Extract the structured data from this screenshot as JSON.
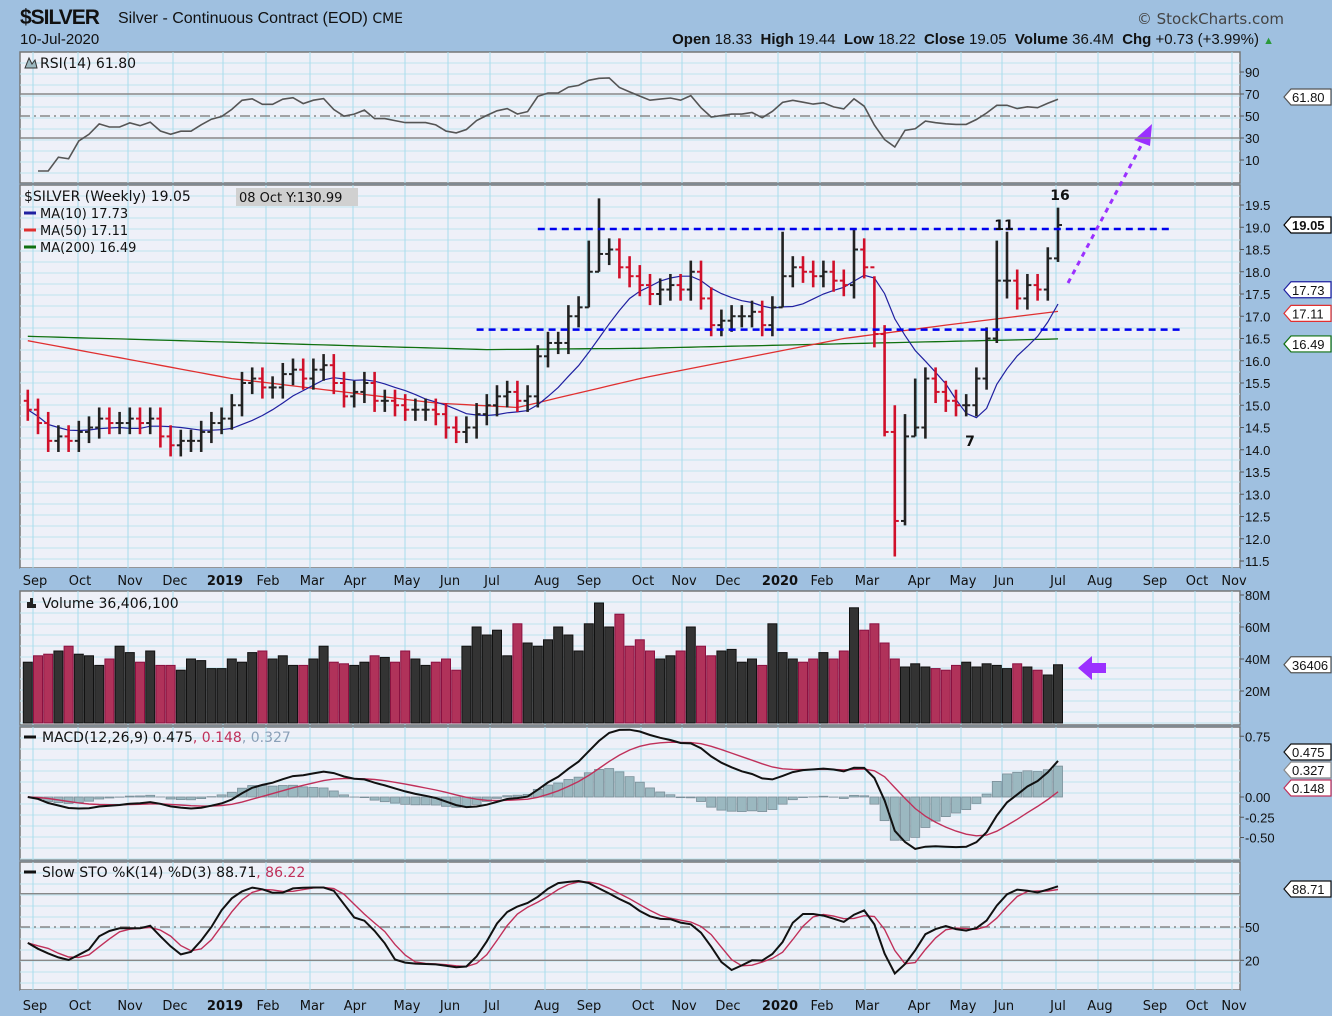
{
  "header": {
    "symbol": "$SILVER",
    "description": "Silver - Continuous Contract (EOD)",
    "exchange": "CME",
    "date": "10-Jul-2020",
    "brand": "© StockCharts.com",
    "open_label": "Open",
    "open": "18.33",
    "high_label": "High",
    "high": "19.44",
    "low_label": "Low",
    "low": "18.22",
    "close_label": "Close",
    "close": "19.05",
    "volume_label": "Volume",
    "volume": "36.4M",
    "chg_label": "Chg",
    "chg": "+0.73 (+3.99%)",
    "chg_icon": "triangle-up-icon"
  },
  "colors": {
    "up": "#222222",
    "down": "#d0102a",
    "vol_up": "#333333",
    "vol_down": "#b0325a",
    "ma10": "#2020a0",
    "ma50": "#e03030",
    "ma200": "#107010",
    "signal": "#c0305a",
    "hist": "#9bb8c0",
    "trendline": "#0000ee",
    "projection": "#9b30ff",
    "annotation": "#ff2020",
    "background": "#9fc0e0",
    "panel": "#eef0f8"
  },
  "tooltip": "08 Oct Y:130.99",
  "chart_data": [
    {
      "type": "line",
      "title": "RSI(14) 61.80",
      "levels": [
        70,
        50,
        30
      ],
      "yticks": [
        "90",
        "70",
        "50",
        "30",
        "10"
      ],
      "ylim": [
        0,
        100
      ],
      "last_value": "61.80"
    },
    {
      "type": "ohlc",
      "title": "$SILVER (Weekly) 19.05",
      "legend": [
        {
          "label": "MA(10) 17.73",
          "color": "#2020a0"
        },
        {
          "label": "MA(50) 17.11",
          "color": "#e03030"
        },
        {
          "label": "MA(200) 16.49",
          "color": "#107010"
        }
      ],
      "yticks": [
        "19.5",
        "19.0",
        "18.5",
        "18.0",
        "17.5",
        "17.0",
        "16.5",
        "16.0",
        "15.5",
        "15.0",
        "14.5",
        "14.0",
        "13.5",
        "13.0",
        "12.5",
        "12.0",
        "11.5"
      ],
      "ylim": [
        11.3,
        20.0
      ],
      "closes": [
        14.9,
        14.6,
        14.2,
        14.3,
        14.2,
        14.4,
        14.5,
        14.7,
        14.6,
        14.6,
        14.7,
        14.6,
        14.7,
        14.3,
        14.1,
        14.2,
        14.2,
        14.4,
        14.6,
        14.7,
        15.0,
        15.5,
        15.6,
        15.4,
        15.4,
        15.7,
        15.8,
        15.6,
        15.8,
        15.9,
        15.5,
        15.2,
        15.3,
        15.5,
        15.1,
        15.1,
        15.0,
        14.9,
        14.9,
        14.9,
        14.8,
        14.5,
        14.4,
        14.5,
        14.8,
        15.0,
        15.2,
        15.3,
        15.1,
        15.2,
        16.1,
        16.4,
        16.4,
        17.0,
        17.2,
        18.0,
        18.4,
        18.5,
        18.1,
        17.9,
        17.7,
        17.5,
        17.6,
        17.7,
        17.6,
        18.0,
        17.4,
        16.8,
        16.9,
        17.0,
        17.0,
        17.1,
        16.8,
        17.2,
        17.9,
        18.1,
        18.0,
        17.9,
        18.0,
        17.8,
        17.7,
        18.5,
        18.1,
        16.6,
        14.4,
        12.4,
        14.3,
        14.5,
        15.6,
        15.3,
        15.1,
        15.0,
        15.0,
        15.6,
        16.5,
        17.8,
        17.8,
        17.4,
        17.7,
        17.6,
        18.3,
        19.05
      ],
      "bar_extremes": [
        {
          "week": 55,
          "high": 18.7,
          "low": 17.2
        },
        {
          "week": 56,
          "high": 19.65,
          "low": 18.0
        },
        {
          "week": 74,
          "high": 18.9,
          "low": 17.2
        },
        {
          "week": 81,
          "high": 18.95,
          "low": 17.4
        },
        {
          "week": 83,
          "high": 17.9,
          "low": 16.3
        },
        {
          "week": 84,
          "high": 16.8,
          "low": 14.3
        },
        {
          "week": 85,
          "high": 15.0,
          "low": 11.6
        },
        {
          "week": 86,
          "high": 14.8,
          "low": 12.3
        },
        {
          "week": 87,
          "high": 15.6,
          "low": 14.3
        },
        {
          "week": 95,
          "high": 18.7,
          "low": 16.4
        },
        {
          "week": 96,
          "high": 18.9,
          "low": 17.4
        },
        {
          "week": 101,
          "high": 19.44,
          "low": 18.22
        }
      ],
      "ma50_anchors": [
        [
          0,
          16.45
        ],
        [
          20,
          15.6
        ],
        [
          40,
          15.05
        ],
        [
          48,
          14.95
        ],
        [
          60,
          15.6
        ],
        [
          80,
          16.5
        ],
        [
          90,
          16.8
        ],
        [
          101,
          17.11
        ]
      ],
      "ma200_anchors": [
        [
          0,
          16.55
        ],
        [
          45,
          16.25
        ],
        [
          60,
          16.28
        ],
        [
          101,
          16.49
        ]
      ],
      "trendlines": [
        {
          "from_week": 50,
          "to_week": 112,
          "value": 18.96,
          "style": "dashed"
        },
        {
          "from_week": 44,
          "to_week": 113,
          "value": 16.7,
          "style": "dashed"
        }
      ],
      "annotations": [
        "16",
        "11",
        "7"
      ],
      "last_values": {
        "close": "19.05",
        "ma10": "17.73",
        "ma50": "17.11",
        "ma200": "16.49"
      }
    },
    {
      "type": "bar",
      "title": "Volume 36,406,100",
      "yticks": [
        "80M",
        "60M",
        "40M",
        "20M"
      ],
      "ylim": [
        0,
        80
      ],
      "unit": "M",
      "values": [
        38,
        42,
        43,
        45,
        48,
        43,
        42,
        36,
        40,
        48,
        44,
        38,
        45,
        36,
        36,
        33,
        40,
        39,
        34,
        34,
        40,
        38,
        44,
        45,
        40,
        42,
        36,
        36,
        40,
        48,
        38,
        37,
        36,
        38,
        42,
        41,
        38,
        45,
        40,
        36,
        38,
        40,
        33,
        48,
        60,
        55,
        58,
        42,
        62,
        50,
        48,
        52,
        60,
        55,
        45,
        62,
        75,
        60,
        68,
        48,
        52,
        45,
        40,
        42,
        45,
        60,
        48,
        42,
        45,
        46,
        38,
        40,
        36,
        62,
        44,
        40,
        38,
        40,
        44,
        40,
        45,
        72,
        58,
        62,
        50,
        40,
        35,
        37,
        35,
        34,
        33,
        36,
        38,
        35,
        37,
        36,
        34,
        37,
        35,
        33,
        30,
        36.4
      ],
      "last_value": "36406"
    },
    {
      "type": "line",
      "title_main": "MACD(12,26,9) 0.475",
      "title_signal": ", 0.148",
      "title_hist": ", 0.327",
      "yticks": [
        "0.75",
        "0.00",
        "-0.25",
        "-0.50"
      ],
      "last_values": {
        "macd": "0.475",
        "hist": "0.327",
        "signal": "0.148"
      }
    },
    {
      "type": "line",
      "title_main": "Slow STO %K(14) %D(3) 88.71",
      "title_d": ", 86.22",
      "levels": [
        80,
        50,
        20
      ],
      "yticks": [
        "50",
        "20"
      ],
      "ylim": [
        0,
        100
      ],
      "last_value": "88.71"
    }
  ],
  "x_axis": {
    "months": [
      "Sep",
      "Oct",
      "Nov",
      "Dec",
      "2019",
      "Feb",
      "Mar",
      "Apr",
      "May",
      "Jun",
      "Jul",
      "Aug",
      "Sep",
      "Oct",
      "Nov",
      "Dec",
      "2020",
      "Feb",
      "Mar",
      "Apr",
      "May",
      "Jun",
      "Jul",
      "Aug",
      "Sep",
      "Oct",
      "Nov"
    ],
    "bold": [
      "2019",
      "2020"
    ]
  }
}
